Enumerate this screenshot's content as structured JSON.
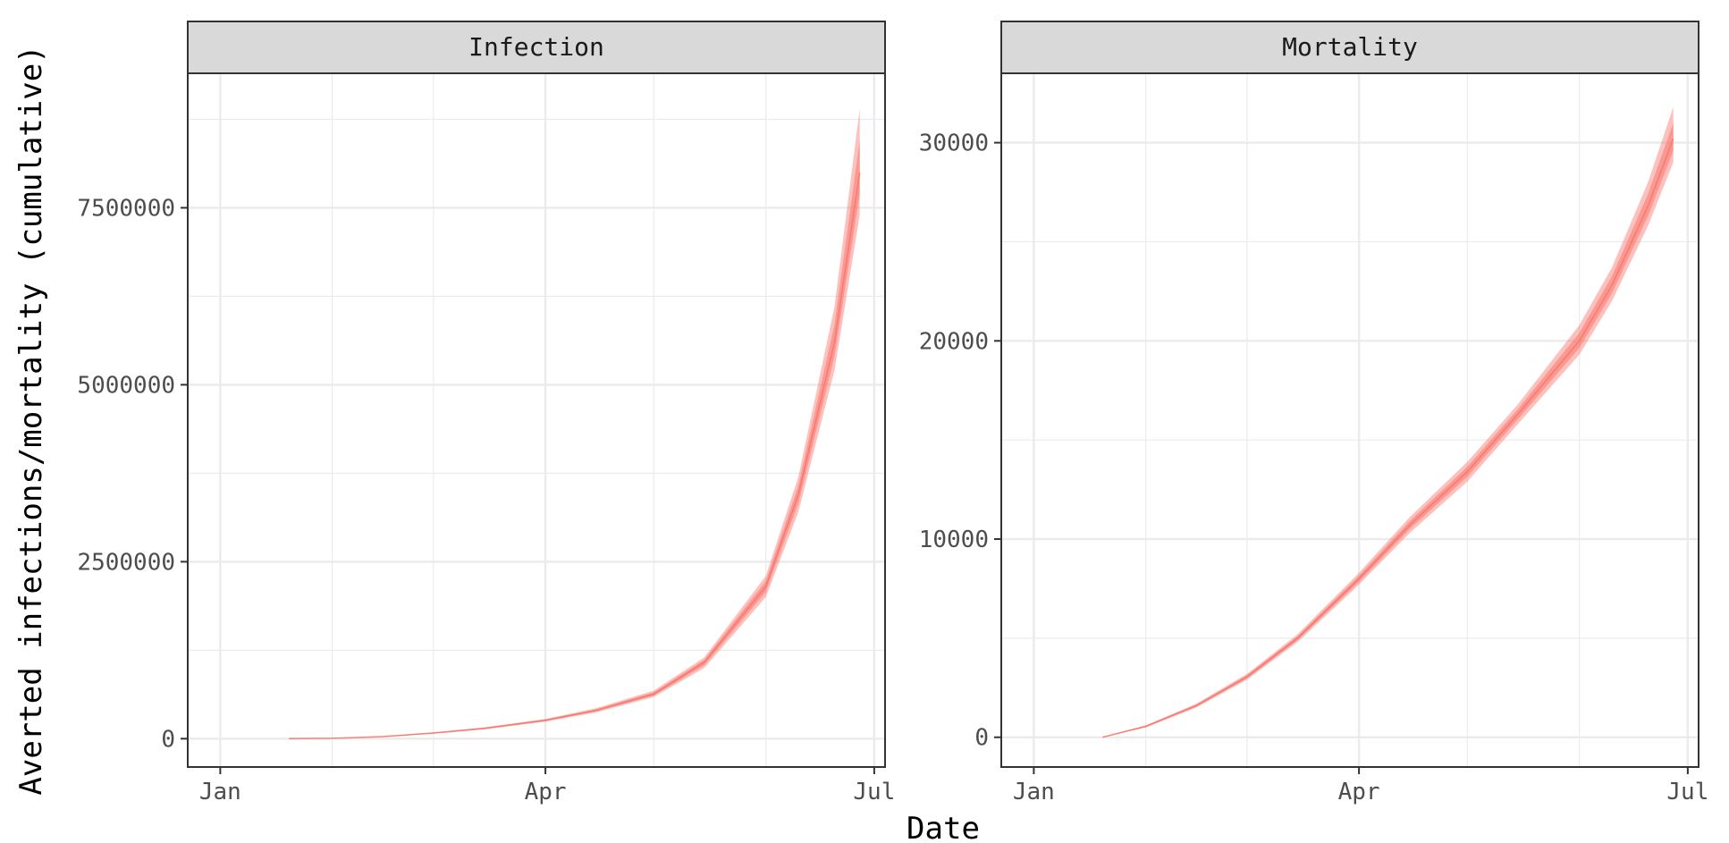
{
  "figure": {
    "xlabel": "Date",
    "ylabel": "Averted infections/mortality (cumulative)",
    "band_color": "#F8766D",
    "strip_fill": "#D9D9D9",
    "grid_color": "#EBEBEB",
    "axis_text_color": "#4D4D4D"
  },
  "chart_data": [
    {
      "type": "area",
      "panel": "Infection",
      "x_ticks": [
        "Jan",
        "Apr",
        "Jul"
      ],
      "xlim": [
        "2021-01-01",
        "2021-07-01"
      ],
      "y_ticks": [
        "0",
        "2500000",
        "5000000",
        "7500000"
      ],
      "ylim": [
        -400000,
        9400000
      ],
      "grid": true,
      "series": [
        {
          "x": [
            "2021-01-20",
            "2021-02-01",
            "2021-02-15",
            "2021-03-01",
            "2021-03-15",
            "2021-04-01",
            "2021-04-15",
            "2021-05-01",
            "2021-05-15",
            "2021-06-01",
            "2021-06-10",
            "2021-06-20",
            "2021-06-27"
          ],
          "lower": [
            0,
            5000,
            25000,
            70000,
            130000,
            240000,
            370000,
            590000,
            1000000,
            2000000,
            3200000,
            5200000,
            7400000
          ],
          "median": [
            0,
            6000,
            30000,
            80000,
            145000,
            260000,
            400000,
            630000,
            1080000,
            2150000,
            3450000,
            5600000,
            8000000
          ],
          "upper": [
            0,
            7000,
            35000,
            90000,
            160000,
            280000,
            430000,
            680000,
            1150000,
            2300000,
            3700000,
            6100000,
            8900000
          ]
        }
      ]
    },
    {
      "type": "area",
      "panel": "Mortality",
      "x_ticks": [
        "Jan",
        "Apr",
        "Jul"
      ],
      "xlim": [
        "2021-01-01",
        "2021-07-01"
      ],
      "y_ticks": [
        "0",
        "10000",
        "20000",
        "30000"
      ],
      "ylim": [
        -1500,
        33500
      ],
      "grid": true,
      "series": [
        {
          "x": [
            "2021-01-20",
            "2021-02-01",
            "2021-02-15",
            "2021-03-01",
            "2021-03-15",
            "2021-04-01",
            "2021-04-15",
            "2021-05-01",
            "2021-05-15",
            "2021-06-01",
            "2021-06-10",
            "2021-06-20",
            "2021-06-27"
          ],
          "lower": [
            0,
            500,
            1500,
            2900,
            4800,
            7700,
            10300,
            12900,
            15800,
            19300,
            22000,
            25800,
            29000
          ],
          "median": [
            0,
            550,
            1600,
            3050,
            5000,
            8000,
            10700,
            13400,
            16300,
            20000,
            22800,
            26800,
            30200
          ],
          "upper": [
            0,
            600,
            1700,
            3200,
            5200,
            8300,
            11100,
            13900,
            16800,
            20800,
            23700,
            28000,
            31800
          ]
        }
      ]
    }
  ]
}
